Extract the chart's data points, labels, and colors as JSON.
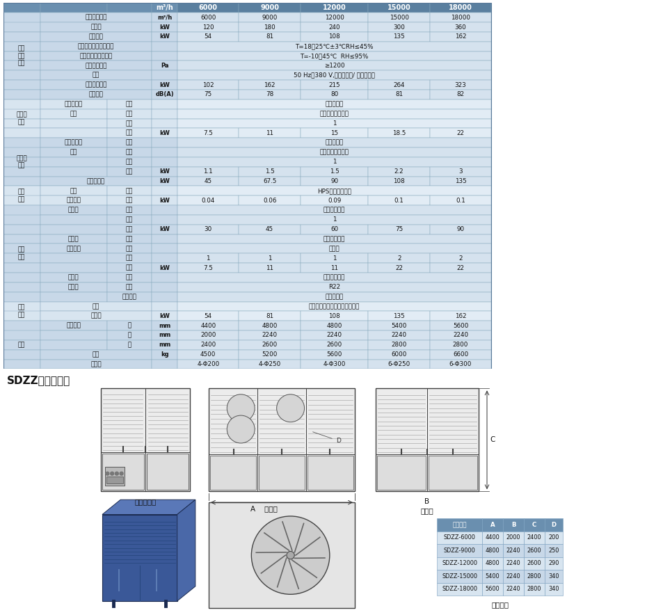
{
  "title": "SDZZ外形示意圖",
  "rows": [
    {
      "section": "机组\n整体\n性能",
      "col1": "額定處理風量",
      "col2": "",
      "unit": "m³/h",
      "vals": [
        "6000",
        "9000",
        "12000",
        "15000",
        "18000"
      ],
      "span": false
    },
    {
      "section": "",
      "col1": "制冷量",
      "col2": "",
      "unit": "kW",
      "vals": [
        "120",
        "180",
        "240",
        "300",
        "360"
      ],
      "span": false
    },
    {
      "section": "",
      "col1": "電加熱量",
      "col2": "",
      "unit": "kW",
      "vals": [
        "54",
        "81",
        "108",
        "135",
        "162"
      ],
      "span": false
    },
    {
      "section": "",
      "col1": "溫濕度控制範圍及精度",
      "col2": "",
      "unit": "",
      "vals": [
        "T=18～25℃±3℃RH≤45%"
      ],
      "span": true
    },
    {
      "section": "",
      "col1": "工作環境溫濕度範圍",
      "col2": "",
      "unit": "",
      "vals": [
        "T=-10～45℃  RH≤95%"
      ],
      "span": true
    },
    {
      "section": "",
      "col1": "送風機外余壓",
      "col2": "",
      "unit": "Pa",
      "vals": [
        "≥1200"
      ],
      "span": true
    },
    {
      "section": "",
      "col1": "電源",
      "col2": "",
      "unit": "",
      "vals": [
        "50 Hz，380 V,三相四線制/ 三相三線制"
      ],
      "span": true
    },
    {
      "section": "",
      "col1": "額定最大功率",
      "col2": "",
      "unit": "kW",
      "vals": [
        "102",
        "162",
        "215",
        "264",
        "323"
      ],
      "span": false
    },
    {
      "section": "",
      "col1": "機組噪音",
      "col2": "",
      "unit": "dB(A)",
      "vals": [
        "75",
        "78",
        "80",
        "81",
        "82"
      ],
      "span": false
    },
    {
      "section": "處理風\n系統",
      "col1": "空氣過濾器",
      "col2": "類型",
      "unit": "",
      "vals": [
        "金屬網板式"
      ],
      "span": true
    },
    {
      "section": "",
      "col1": "風機",
      "col2": "類型",
      "unit": "",
      "vals": [
        "單進風直連離心式"
      ],
      "span": true
    },
    {
      "section": "",
      "col1": "",
      "col2": "數量",
      "unit": "",
      "vals": [
        "1"
      ],
      "span": true
    },
    {
      "section": "",
      "col1": "",
      "col2": "功率",
      "unit": "kW",
      "vals": [
        "7.5",
        "11",
        "15",
        "18.5",
        "22"
      ],
      "span": false
    },
    {
      "section": "再生風\n系統",
      "col1": "空氣過濾器",
      "col2": "類型",
      "unit": "",
      "vals": [
        "金屬網板式"
      ],
      "span": true
    },
    {
      "section": "",
      "col1": "風機",
      "col2": "類型",
      "unit": "",
      "vals": [
        "單進風直連離心式"
      ],
      "span": true
    },
    {
      "section": "",
      "col1": "",
      "col2": "數量",
      "unit": "",
      "vals": [
        "1"
      ],
      "span": true
    },
    {
      "section": "",
      "col1": "",
      "col2": "功率",
      "unit": "kW",
      "vals": [
        "1.1",
        "1.5",
        "1.5",
        "2.2",
        "3"
      ],
      "span": false
    },
    {
      "section": "",
      "col1": "再生加熱量",
      "col2": "",
      "unit": "kW",
      "vals": [
        "45",
        "67.5",
        "90",
        "108",
        "135"
      ],
      "span": false
    },
    {
      "section": "轉輪\n系統",
      "col1": "轉輪",
      "col2": "類型",
      "unit": "",
      "vals": [
        "HPS（高效硅膠）"
      ],
      "span": true
    },
    {
      "section": "",
      "col1": "轉輪電機",
      "col2": "功率",
      "unit": "kW",
      "vals": [
        "0.04",
        "0.06",
        "0.09",
        "0.1",
        "0.1"
      ],
      "span": false
    },
    {
      "section": "制冷\n系統",
      "col1": "壓縮機",
      "col2": "類型",
      "unit": "",
      "vals": [
        "半封閉螺桿式"
      ],
      "span": true
    },
    {
      "section": "",
      "col1": "",
      "col2": "數量",
      "unit": "",
      "vals": [
        "1"
      ],
      "span": true
    },
    {
      "section": "",
      "col1": "",
      "col2": "功率",
      "unit": "kW",
      "vals": [
        "30",
        "45",
        "60",
        "75",
        "90"
      ],
      "span": false
    },
    {
      "section": "",
      "col1": "冷凝器",
      "col2": "類型",
      "unit": "",
      "vals": [
        "銅管套鋁片式"
      ],
      "span": true
    },
    {
      "section": "",
      "col1": "冷凝風機",
      "col2": "類型",
      "unit": "",
      "vals": [
        "軸流式"
      ],
      "span": true
    },
    {
      "section": "",
      "col1": "",
      "col2": "數量",
      "unit": "",
      "vals": [
        "1",
        "1",
        "1",
        "2",
        "2"
      ],
      "span": false
    },
    {
      "section": "",
      "col1": "",
      "col2": "功率",
      "unit": "kW",
      "vals": [
        "7.5",
        "11",
        "11",
        "22",
        "22"
      ],
      "span": false
    },
    {
      "section": "",
      "col1": "蒸發器",
      "col2": "類型",
      "unit": "",
      "vals": [
        "銅管套鋁片式"
      ],
      "span": true
    },
    {
      "section": "",
      "col1": "制冷劑",
      "col2": "類型",
      "unit": "",
      "vals": [
        "R22"
      ],
      "span": true
    },
    {
      "section": "",
      "col1": "",
      "col2": "節流方式",
      "unit": "",
      "vals": [
        "熱力膨脹閥"
      ],
      "span": true
    },
    {
      "section": "加熱\n系統",
      "col1": "類型",
      "col2": "",
      "unit": "",
      "vals": [
        "電加熱（不鏽鋼管繞不鏽鋼片）"
      ],
      "span": true
    },
    {
      "section": "",
      "col1": "加熱量",
      "col2": "",
      "unit": "kW",
      "vals": [
        "54",
        "81",
        "108",
        "135",
        "162"
      ],
      "span": false
    },
    {
      "section": "其他",
      "col1": "外形尺寸",
      "col2": "長",
      "unit": "mm",
      "vals": [
        "4400",
        "4800",
        "4800",
        "5400",
        "5600"
      ],
      "span": false
    },
    {
      "section": "",
      "col1": "",
      "col2": "寬",
      "unit": "mm",
      "vals": [
        "2000",
        "2240",
        "2240",
        "2240",
        "2240"
      ],
      "span": false
    },
    {
      "section": "",
      "col1": "",
      "col2": "高",
      "unit": "mm",
      "vals": [
        "2400",
        "2600",
        "2600",
        "2800",
        "2800"
      ],
      "span": false
    },
    {
      "section": "",
      "col1": "重量",
      "col2": "",
      "unit": "kg",
      "vals": [
        "4500",
        "5200",
        "5600",
        "6000",
        "6600"
      ],
      "span": false
    },
    {
      "section": "",
      "col1": "出風口",
      "col2": "",
      "unit": "",
      "vals": [
        "4-Φ200",
        "4-Φ250",
        "4-Φ300",
        "6-Φ250",
        "6-Φ300"
      ],
      "span": false
    }
  ],
  "header_bg": "#6a8faf",
  "val_header_bg": "#5a7f9f",
  "sec_colors": [
    "#c8d8e8",
    "#d8e5f0"
  ],
  "val_colors": [
    "#d5e2ee",
    "#e2ecf5"
  ],
  "border_color": "#8aabbf",
  "spec_table": {
    "headers": [
      "設備型號",
      "A",
      "B",
      "C",
      "D"
    ],
    "rows": [
      [
        "SDZZ-6000",
        "4400",
        "2000",
        "2400",
        "200"
      ],
      [
        "SDZZ-9000",
        "4800",
        "2240",
        "2600",
        "250"
      ],
      [
        "SDZZ-12000",
        "4800",
        "2240",
        "2600",
        "290"
      ],
      [
        "SDZZ-15000",
        "5400",
        "2240",
        "2800",
        "340"
      ],
      [
        "SDZZ-18000",
        "5600",
        "2240",
        "2800",
        "340"
      ]
    ],
    "caption": "主要尺寸",
    "header_bg": "#6a8faf",
    "row_bg_a": "#d8e5f0",
    "row_bg_b": "#c8d8e8"
  }
}
